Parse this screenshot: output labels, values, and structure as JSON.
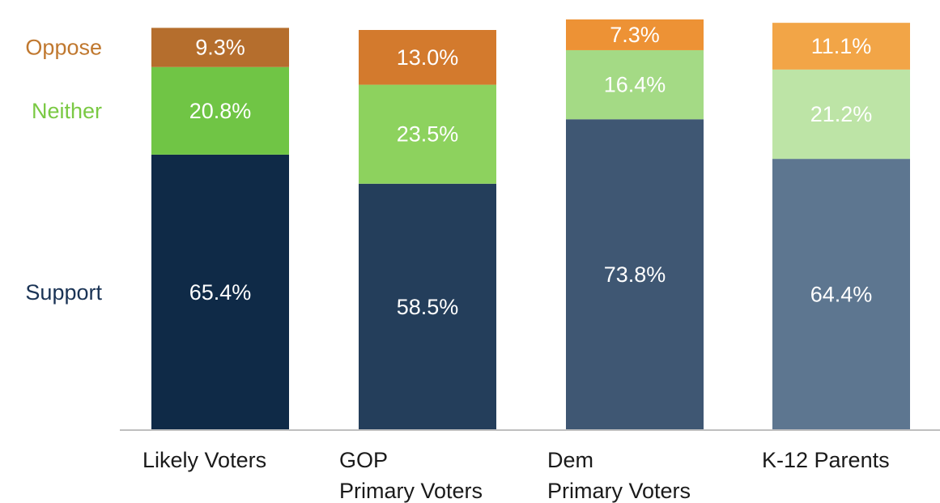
{
  "chart_data": {
    "type": "bar",
    "stacked": true,
    "categories": [
      [
        "Likely Voters"
      ],
      [
        "GOP",
        "Primary Voters"
      ],
      [
        "Dem",
        "Primary Voters"
      ],
      [
        "K-12 Parents"
      ]
    ],
    "series": [
      {
        "name": "Support",
        "values": [
          65.4,
          58.5,
          73.8,
          64.4
        ],
        "labels": [
          "65.4%",
          "58.5%",
          "73.8%",
          "64.4%"
        ],
        "colors": [
          "#0f2a47",
          "#243e5b",
          "#3f5773",
          "#5d7690"
        ],
        "legend_color": "#1a3355"
      },
      {
        "name": "Neither",
        "values": [
          20.8,
          23.5,
          16.4,
          21.2
        ],
        "labels": [
          "20.8%",
          "23.5%",
          "16.4%",
          "21.2%"
        ],
        "colors": [
          "#70c545",
          "#8dd25e",
          "#a4da85",
          "#bde4a6"
        ],
        "legend_color": "#7ac943"
      },
      {
        "name": "Oppose",
        "values": [
          9.3,
          13.0,
          7.3,
          11.1
        ],
        "labels": [
          "9.3%",
          "13.0%",
          "7.3%",
          "11.1%"
        ],
        "colors": [
          "#b56e2d",
          "#d37a2d",
          "#ed9235",
          "#f2a547"
        ],
        "legend_color": "#c0782f"
      }
    ],
    "ylim": [
      0,
      100
    ],
    "grid": false,
    "legend": "left, aligned with segments"
  }
}
